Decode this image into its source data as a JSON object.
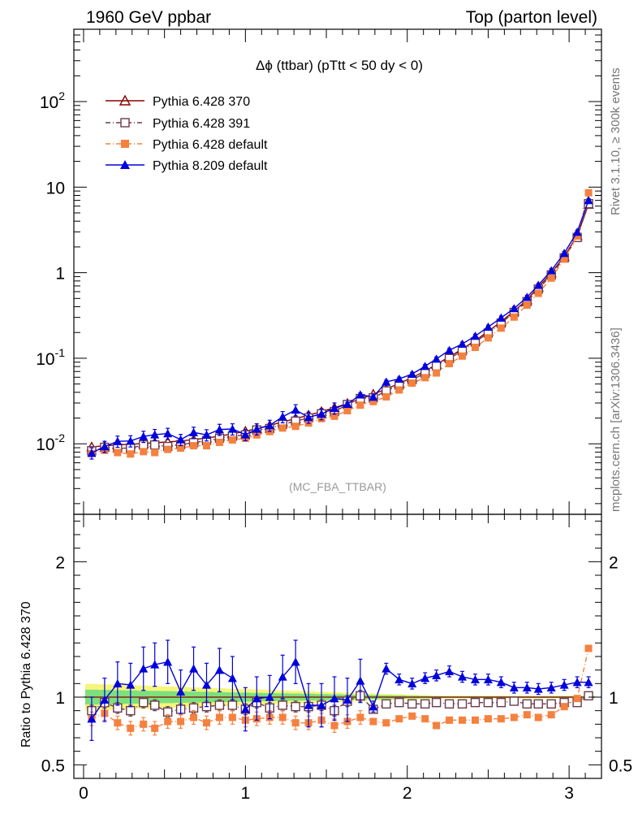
{
  "header": {
    "left": "1960 GeV ppbar",
    "right": "Top (parton level)"
  },
  "side_labels": {
    "top": "Rivet 3.1.10, ≥ 300k events",
    "bottom": "mcplots.cern.ch [arXiv:1306.3436]"
  },
  "plot_title": "Δϕ (ttbar) (pTtt < 50 dy < 0)",
  "analysis_tag": "(MC_FBA_TTBAR)",
  "colors": {
    "py6_370": "#8b0000",
    "py6_391": "#6b3a4d",
    "py6_default": "#f5813f",
    "py8_default": "#0000dd",
    "band_inner": "#7de07d",
    "band_outer": "#f5f57a"
  },
  "chart_data": [
    {
      "type": "line",
      "name": "main",
      "title": "Δϕ (ttbar) (pTtt < 50 dy < 0)",
      "xlabel": "",
      "ylabel": "",
      "log_y": true,
      "xlim": [
        -0.06,
        3.2
      ],
      "ylim": [
        0.0015,
        700
      ],
      "y_tick_labels": [
        "10^-2",
        "10^-1",
        "1",
        "10",
        "10^2"
      ],
      "legend_position": "top-left",
      "x": [
        0.05,
        0.13,
        0.21,
        0.29,
        0.37,
        0.44,
        0.52,
        0.6,
        0.68,
        0.76,
        0.84,
        0.92,
        1.0,
        1.07,
        1.15,
        1.23,
        1.31,
        1.39,
        1.47,
        1.55,
        1.63,
        1.71,
        1.79,
        1.87,
        1.95,
        2.03,
        2.11,
        2.18,
        2.26,
        2.34,
        2.42,
        2.5,
        2.58,
        2.66,
        2.74,
        2.81,
        2.89,
        2.97,
        3.05,
        3.12
      ],
      "series": [
        {
          "name": "Pythia 6.428 370",
          "marker": "open-triangle",
          "color_key": "py6_370",
          "values": [
            0.0092,
            0.0095,
            0.0097,
            0.0099,
            0.0101,
            0.0103,
            0.0105,
            0.0108,
            0.0112,
            0.0117,
            0.0123,
            0.0131,
            0.014,
            0.0151,
            0.0164,
            0.018,
            0.0197,
            0.0216,
            0.0238,
            0.0264,
            0.0296,
            0.0334,
            0.038,
            0.0437,
            0.0507,
            0.0595,
            0.0706,
            0.0849,
            0.104,
            0.128,
            0.161,
            0.206,
            0.268,
            0.356,
            0.482,
            0.676,
            0.99,
            1.55,
            2.7,
            6.3
          ]
        },
        {
          "name": "Pythia 6.428 391",
          "marker": "open-square",
          "color_key": "py6_391",
          "values": [
            0.0083,
            0.0091,
            0.0089,
            0.0089,
            0.0097,
            0.0097,
            0.0093,
            0.0098,
            0.0103,
            0.0109,
            0.0116,
            0.0123,
            0.0127,
            0.0145,
            0.0151,
            0.0169,
            0.0184,
            0.0201,
            0.0224,
            0.0238,
            0.0288,
            0.0338,
            0.0345,
            0.0415,
            0.0486,
            0.0563,
            0.0667,
            0.0815,
            0.0993,
            0.122,
            0.155,
            0.197,
            0.257,
            0.344,
            0.459,
            0.643,
            0.94,
            1.49,
            2.58,
            6.4
          ]
        },
        {
          "name": "Pythia 6.428 default",
          "marker": "filled-square",
          "color_key": "py6_default",
          "values": [
            0.0077,
            0.0084,
            0.0079,
            0.0076,
            0.0081,
            0.0079,
            0.0086,
            0.0089,
            0.0095,
            0.0095,
            0.0104,
            0.0111,
            0.0116,
            0.0127,
            0.0139,
            0.0153,
            0.016,
            0.0175,
            0.0197,
            0.021,
            0.0244,
            0.0283,
            0.0312,
            0.0354,
            0.0426,
            0.0512,
            0.0593,
            0.0673,
            0.0865,
            0.106,
            0.134,
            0.173,
            0.225,
            0.303,
            0.418,
            0.574,
            0.865,
            1.44,
            2.68,
            8.6
          ]
        },
        {
          "name": "Pythia 8.209 default",
          "marker": "filled-triangle",
          "color_key": "py8_default",
          "values": [
            0.0078,
            0.0093,
            0.0107,
            0.0108,
            0.0122,
            0.0128,
            0.0132,
            0.0112,
            0.0136,
            0.0127,
            0.0147,
            0.0149,
            0.0128,
            0.0149,
            0.0164,
            0.0207,
            0.0249,
            0.0204,
            0.0224,
            0.0261,
            0.0291,
            0.0375,
            0.0353,
            0.0529,
            0.0574,
            0.0654,
            0.0807,
            0.0983,
            0.124,
            0.147,
            0.182,
            0.232,
            0.297,
            0.382,
            0.517,
            0.716,
            1.06,
            1.69,
            2.99,
            7.0
          ]
        }
      ]
    },
    {
      "type": "line",
      "name": "ratio",
      "xlabel": "",
      "ylabel": "Ratio to Pythia 6.428 370",
      "xlim": [
        -0.06,
        3.2
      ],
      "ylim": [
        0.4,
        2.35
      ],
      "y_tick_labels": [
        "0.5",
        "1",
        "2"
      ],
      "x_tick_labels": [
        "0",
        "1",
        "2",
        "3"
      ],
      "x": [
        0.05,
        0.13,
        0.21,
        0.29,
        0.37,
        0.44,
        0.52,
        0.6,
        0.68,
        0.76,
        0.84,
        0.92,
        1.0,
        1.07,
        1.15,
        1.23,
        1.31,
        1.39,
        1.47,
        1.55,
        1.63,
        1.71,
        1.79,
        1.87,
        1.95,
        2.03,
        2.11,
        2.18,
        2.26,
        2.34,
        2.42,
        2.5,
        2.58,
        2.66,
        2.74,
        2.81,
        2.89,
        2.97,
        3.05,
        3.12
      ],
      "series": [
        {
          "name": "Pythia 6.428 391",
          "marker": "open-square",
          "color_key": "py6_391",
          "values": [
            0.9,
            0.96,
            0.92,
            0.9,
            0.96,
            0.94,
            0.89,
            0.91,
            0.92,
            0.93,
            0.94,
            0.94,
            0.91,
            0.96,
            0.92,
            0.94,
            0.93,
            0.93,
            0.94,
            0.9,
            0.97,
            1.01,
            0.91,
            0.95,
            0.96,
            0.95,
            0.95,
            0.96,
            0.95,
            0.95,
            0.96,
            0.96,
            0.96,
            0.97,
            0.95,
            0.95,
            0.95,
            0.96,
            0.96,
            1.01
          ]
        },
        {
          "name": "Pythia 6.428 default",
          "marker": "filled-square",
          "color_key": "py6_default",
          "values": [
            0.84,
            0.88,
            0.81,
            0.77,
            0.8,
            0.77,
            0.82,
            0.82,
            0.85,
            0.81,
            0.85,
            0.85,
            0.83,
            0.84,
            0.85,
            0.85,
            0.81,
            0.81,
            0.83,
            0.79,
            0.82,
            0.85,
            0.82,
            0.81,
            0.84,
            0.86,
            0.84,
            0.79,
            0.83,
            0.83,
            0.83,
            0.84,
            0.84,
            0.85,
            0.87,
            0.85,
            0.87,
            0.93,
            0.99,
            1.36
          ]
        },
        {
          "name": "Pythia 8.209 default",
          "marker": "filled-triangle",
          "color_key": "py8_default",
          "values": [
            0.84,
            0.98,
            1.1,
            1.09,
            1.21,
            1.24,
            1.26,
            1.04,
            1.21,
            1.09,
            1.2,
            1.14,
            0.91,
            0.99,
            1.0,
            1.15,
            1.26,
            0.94,
            0.94,
            0.99,
            0.98,
            1.12,
            0.93,
            1.21,
            1.13,
            1.1,
            1.14,
            1.16,
            1.19,
            1.15,
            1.13,
            1.13,
            1.11,
            1.07,
            1.07,
            1.06,
            1.07,
            1.09,
            1.11,
            1.11
          ]
        }
      ]
    }
  ]
}
